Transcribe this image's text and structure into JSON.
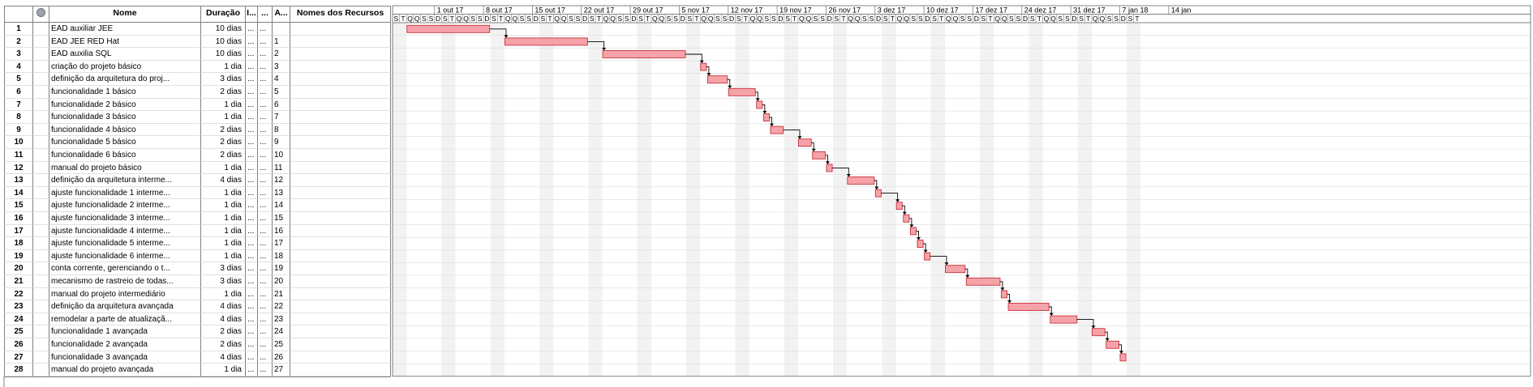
{
  "header": {
    "nome": "Nome",
    "duracao": "Duração",
    "inicio": "I...",
    "termino": "...",
    "antecessoras": "A...",
    "recursos": "Nomes dos Recursos",
    "indicator_icon": "info-icon"
  },
  "timeline": {
    "weeks": [
      "1 out 17",
      "8 out 17",
      "15 out 17",
      "22 out 17",
      "29 out 17",
      "5 nov 17",
      "12 nov 17",
      "19 nov 17",
      "26 nov 17",
      "3 dez 17",
      "10 dez 17",
      "17 dez 17",
      "24 dez 17",
      "31 dez 17",
      "7 jan 18",
      "14 jan"
    ],
    "first_partial_days": [
      "S",
      "T",
      "Q",
      "Q",
      "S",
      "S"
    ],
    "week_days": [
      "D",
      "S",
      "T",
      "Q",
      "Q",
      "S",
      "S"
    ],
    "last_partial_days": [
      "D",
      "S",
      "T"
    ]
  },
  "colors": {
    "bar_fill": "#f5a3a8",
    "bar_border": "#c8333c",
    "weekend_shade": "#f2f2f2",
    "grid": "#dcdcdc",
    "border": "#808080"
  },
  "tasks": [
    {
      "id": "1",
      "name": "EAD auxiliar JEE",
      "duration": "10 dias",
      "start": "...",
      "finish": "...",
      "pred": "",
      "res": ""
    },
    {
      "id": "2",
      "name": "EAD JEE RED Hat",
      "duration": "10 dias",
      "start": "...",
      "finish": "...",
      "pred": "1",
      "res": ""
    },
    {
      "id": "3",
      "name": "EAD auxilia SQL",
      "duration": "10 dias",
      "start": "...",
      "finish": "...",
      "pred": "2",
      "res": ""
    },
    {
      "id": "4",
      "name": "criação do projeto básico",
      "duration": "1 dia",
      "start": "...",
      "finish": "...",
      "pred": "3",
      "res": ""
    },
    {
      "id": "5",
      "name": "definição da arquitetura do proj...",
      "duration": "3 dias",
      "start": "...",
      "finish": "...",
      "pred": "4",
      "res": ""
    },
    {
      "id": "6",
      "name": "funcionalidade 1 básico",
      "duration": "2 dias",
      "start": "...",
      "finish": "...",
      "pred": "5",
      "res": ""
    },
    {
      "id": "7",
      "name": "funcionalidade 2 básico",
      "duration": "1 dia",
      "start": "...",
      "finish": "...",
      "pred": "6",
      "res": ""
    },
    {
      "id": "8",
      "name": "funcionalidade 3 básico",
      "duration": "1 dia",
      "start": "...",
      "finish": "...",
      "pred": "7",
      "res": ""
    },
    {
      "id": "9",
      "name": "funcionalidade 4 básico",
      "duration": "2 dias",
      "start": "...",
      "finish": "...",
      "pred": "8",
      "res": ""
    },
    {
      "id": "10",
      "name": "funcionalidade 5 básico",
      "duration": "2 dias",
      "start": "...",
      "finish": "...",
      "pred": "9",
      "res": ""
    },
    {
      "id": "11",
      "name": "funcionalidade 6 básico",
      "duration": "2 dias",
      "start": "...",
      "finish": "...",
      "pred": "10",
      "res": ""
    },
    {
      "id": "12",
      "name": "manual do projeto básico",
      "duration": "1 dia",
      "start": "...",
      "finish": "...",
      "pred": "11",
      "res": ""
    },
    {
      "id": "13",
      "name": "definição da arquitetura interme...",
      "duration": "4 dias",
      "start": "...",
      "finish": "...",
      "pred": "12",
      "res": ""
    },
    {
      "id": "14",
      "name": "ajuste funcionalidade 1 interme...",
      "duration": "1 dia",
      "start": "...",
      "finish": "...",
      "pred": "13",
      "res": ""
    },
    {
      "id": "15",
      "name": "ajuste funcionalidade 2 interme...",
      "duration": "1 dia",
      "start": "...",
      "finish": "...",
      "pred": "14",
      "res": ""
    },
    {
      "id": "16",
      "name": "ajuste funcionalidade 3 interme...",
      "duration": "1 dia",
      "start": "...",
      "finish": "...",
      "pred": "15",
      "res": ""
    },
    {
      "id": "17",
      "name": "ajuste funcionalidade 4 interme...",
      "duration": "1 dia",
      "start": "...",
      "finish": "...",
      "pred": "16",
      "res": ""
    },
    {
      "id": "18",
      "name": "ajuste funcionalidade 5 interme...",
      "duration": "1 dia",
      "start": "...",
      "finish": "...",
      "pred": "17",
      "res": ""
    },
    {
      "id": "19",
      "name": "ajuste funcionalidade 6 interme...",
      "duration": "1 dia",
      "start": "...",
      "finish": "...",
      "pred": "18",
      "res": ""
    },
    {
      "id": "20",
      "name": "conta corrente, gerenciando o t...",
      "duration": "3 dias",
      "start": "...",
      "finish": "...",
      "pred": "19",
      "res": ""
    },
    {
      "id": "21",
      "name": "mecanismo de rastreio de todas...",
      "duration": "3 dias",
      "start": "...",
      "finish": "...",
      "pred": "20",
      "res": ""
    },
    {
      "id": "22",
      "name": "manual do projeto intermediário",
      "duration": "1 dia",
      "start": "...",
      "finish": "...",
      "pred": "21",
      "res": ""
    },
    {
      "id": "23",
      "name": "definição da arquitetura avançada",
      "duration": "4 dias",
      "start": "...",
      "finish": "...",
      "pred": "22",
      "res": ""
    },
    {
      "id": "24",
      "name": "remodelar a parte de atualizaçã...",
      "duration": "4 dias",
      "start": "...",
      "finish": "...",
      "pred": "23",
      "res": ""
    },
    {
      "id": "25",
      "name": "funcionalidade 1 avançada",
      "duration": "2 dias",
      "start": "...",
      "finish": "...",
      "pred": "24",
      "res": ""
    },
    {
      "id": "26",
      "name": "funcionalidade 2 avançada",
      "duration": "2 dias",
      "start": "...",
      "finish": "...",
      "pred": "25",
      "res": ""
    },
    {
      "id": "27",
      "name": "funcionalidade 3 avançada",
      "duration": "4 dias",
      "start": "...",
      "finish": "...",
      "pred": "26",
      "res": ""
    },
    {
      "id": "28",
      "name": "manual do projeto avançada",
      "duration": "1 dia",
      "start": "...",
      "finish": "...",
      "pred": "27",
      "res": ""
    }
  ]
}
